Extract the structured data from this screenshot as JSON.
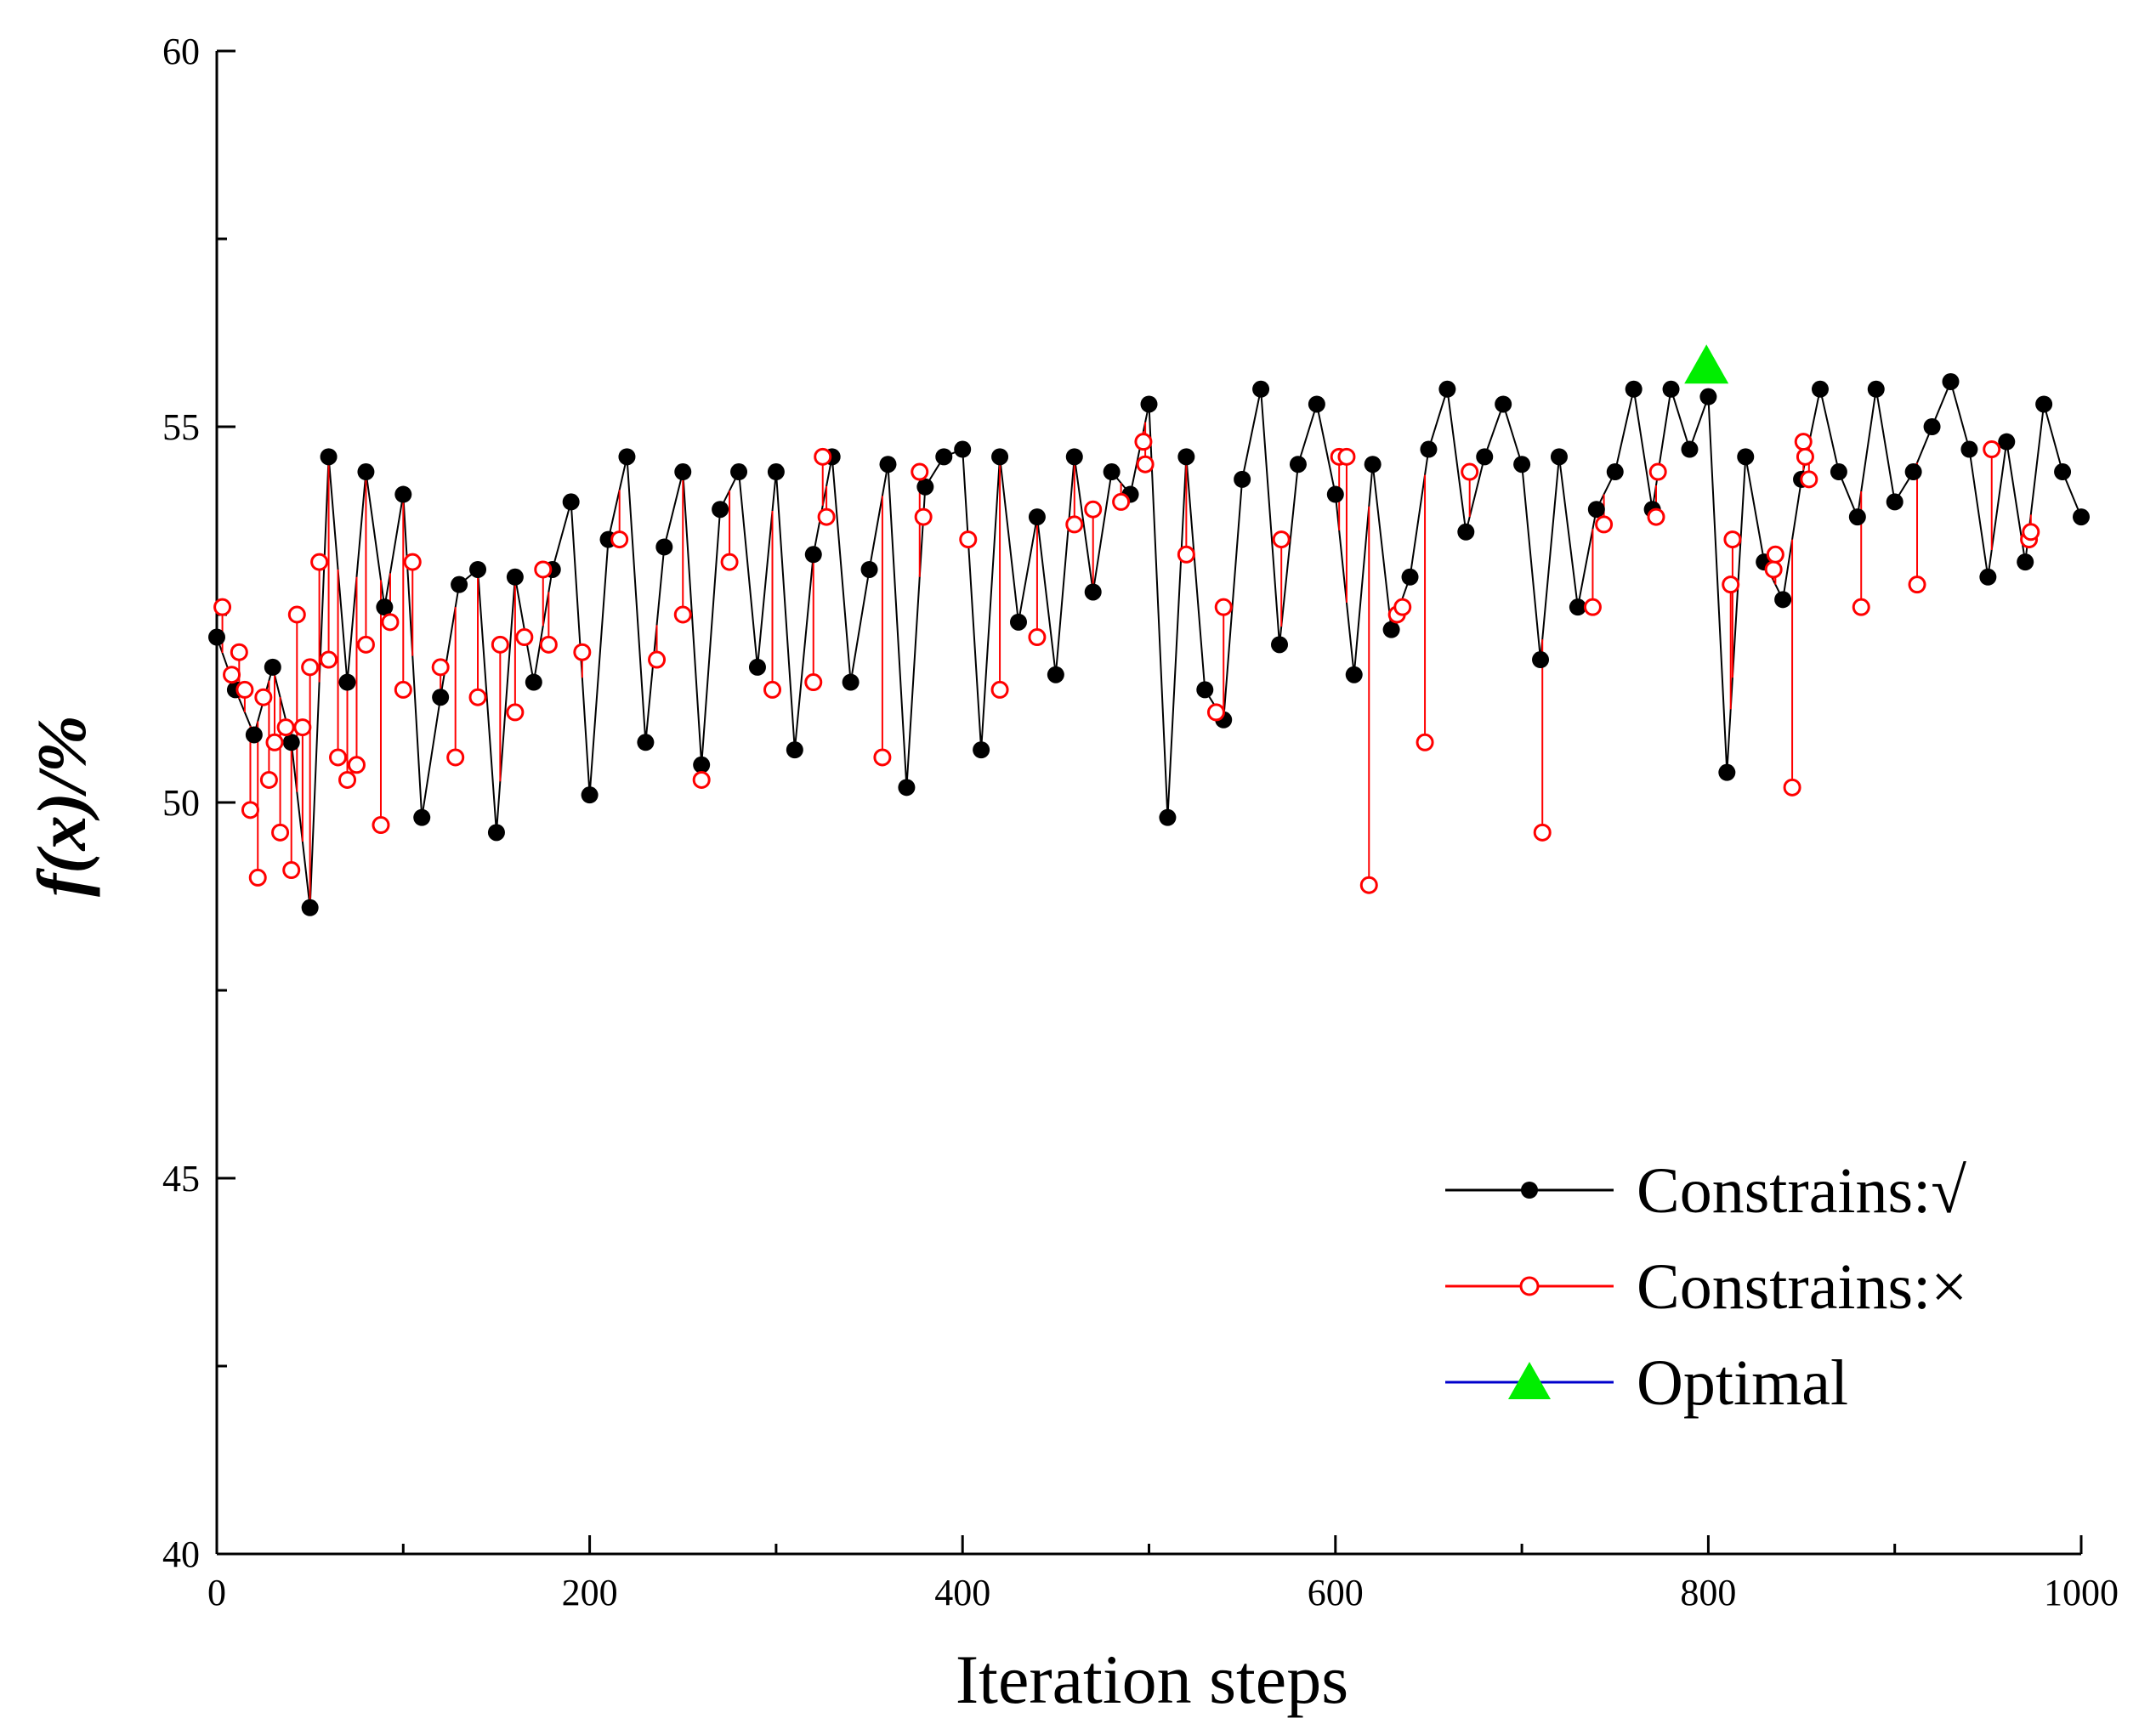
{
  "chart_data": {
    "type": "line",
    "title": "",
    "xlabel": "Iteration steps",
    "ylabel": "f(x)/%",
    "xlim": [
      0,
      1000
    ],
    "ylim": [
      40,
      60
    ],
    "xticks": [
      0,
      200,
      400,
      600,
      800,
      1000
    ],
    "xtick_labels": [
      "0",
      "200",
      "400",
      "600",
      "800",
      "1000"
    ],
    "yticks": [
      40,
      45,
      50,
      55,
      60
    ],
    "ytick_labels": [
      "40",
      "45",
      "50",
      "55",
      "60"
    ],
    "legend_position": "bottom-right",
    "colors": {
      "feasible": "#000000",
      "infeasible": "#ff0000",
      "optimal_line": "#0000cc",
      "optimal_marker": "#00ee00"
    },
    "series": [
      {
        "name": "Constrains:√",
        "marker": "filled-circle",
        "x": [
          0,
          10,
          20,
          30,
          40,
          50,
          60,
          70,
          80,
          90,
          100,
          110,
          120,
          130,
          140,
          150,
          160,
          170,
          180,
          190,
          200,
          210,
          220,
          230,
          240,
          250,
          260,
          270,
          280,
          290,
          300,
          310,
          320,
          330,
          340,
          350,
          360,
          370,
          380,
          390,
          400,
          410,
          420,
          430,
          440,
          450,
          460,
          470,
          480,
          490,
          500,
          510,
          520,
          530,
          540,
          550,
          560,
          570,
          580,
          590,
          600,
          610,
          620,
          630,
          640,
          650,
          660,
          670,
          680,
          690,
          700,
          710,
          720,
          730,
          740,
          750,
          760,
          770,
          780,
          790,
          800,
          810,
          820,
          830,
          840,
          850,
          860,
          870,
          880,
          890,
          900,
          910,
          920,
          930,
          940,
          950,
          960,
          970,
          980,
          990,
          1000
        ],
        "y": [
          52.2,
          51.5,
          50.9,
          51.8,
          50.8,
          48.6,
          54.6,
          51.6,
          54.4,
          52.6,
          54.1,
          49.8,
          51.4,
          52.9,
          53.1,
          49.6,
          53.0,
          51.6,
          53.1,
          54.0,
          50.1,
          53.5,
          54.6,
          50.8,
          53.4,
          54.4,
          50.5,
          53.9,
          54.4,
          51.8,
          54.4,
          50.7,
          53.3,
          54.6,
          51.6,
          53.1,
          54.5,
          50.2,
          54.2,
          54.6,
          54.7,
          50.7,
          54.6,
          52.4,
          53.8,
          51.7,
          54.6,
          52.8,
          54.4,
          54.1,
          55.3,
          49.8,
          54.6,
          51.5,
          51.1,
          54.3,
          55.5,
          52.1,
          54.5,
          55.3,
          54.1,
          51.7,
          54.5,
          52.3,
          53.0,
          54.7,
          55.5,
          53.6,
          54.6,
          55.3,
          54.5,
          51.9,
          54.6,
          52.6,
          53.9,
          54.4,
          55.5,
          53.9,
          55.5,
          54.7,
          55.4,
          50.4,
          54.6,
          53.2,
          52.7,
          54.3,
          55.5,
          54.4,
          53.8,
          55.5,
          54.0,
          54.4,
          55.0,
          55.6,
          54.7,
          53.0,
          54.8,
          53.2,
          55.3,
          54.4,
          53.8
        ]
      },
      {
        "name": "Constrains:×",
        "marker": "open-circle",
        "x": [
          3,
          8,
          12,
          15,
          18,
          22,
          25,
          28,
          31,
          34,
          37,
          40,
          43,
          46,
          50,
          55,
          60,
          65,
          70,
          75,
          80,
          88,
          93,
          100,
          105,
          120,
          128,
          140,
          152,
          160,
          165,
          175,
          178,
          196,
          216,
          236,
          250,
          260,
          275,
          298,
          320,
          325,
          327,
          357,
          377,
          379,
          403,
          420,
          440,
          460,
          470,
          485,
          497,
          498,
          520,
          536,
          540,
          571,
          602,
          606,
          618,
          633,
          636,
          648,
          672,
          711,
          738,
          744,
          772,
          773,
          812,
          813,
          835,
          836,
          845,
          851,
          852,
          854,
          882,
          912,
          952,
          972,
          973
        ],
        "y": [
          52.6,
          51.7,
          52.0,
          51.5,
          49.9,
          49.0,
          51.4,
          50.3,
          50.8,
          49.6,
          51.0,
          49.1,
          52.5,
          51.0,
          51.8,
          53.2,
          51.9,
          50.6,
          50.3,
          50.5,
          52.1,
          49.7,
          52.4,
          51.5,
          53.2,
          51.8,
          50.6,
          51.4,
          52.1,
          51.2,
          52.2,
          53.1,
          52.1,
          52.0,
          53.5,
          51.9,
          52.5,
          50.3,
          53.2,
          51.5,
          51.6,
          54.6,
          53.8,
          50.6,
          54.4,
          53.8,
          53.5,
          51.5,
          52.2,
          53.7,
          53.9,
          54.0,
          54.8,
          54.5,
          53.3,
          51.2,
          52.6,
          53.5,
          54.6,
          54.6,
          48.9,
          52.5,
          52.6,
          50.8,
          54.4,
          49.6,
          52.6,
          53.7,
          53.8,
          54.4,
          52.9,
          53.5,
          53.1,
          53.3,
          50.2,
          54.8,
          54.6,
          54.3,
          52.6,
          52.9,
          54.7,
          53.5,
          53.6
        ]
      },
      {
        "name": "Optimal",
        "marker": "triangle",
        "x": [
          799
        ],
        "y": [
          55.8
        ]
      }
    ]
  }
}
